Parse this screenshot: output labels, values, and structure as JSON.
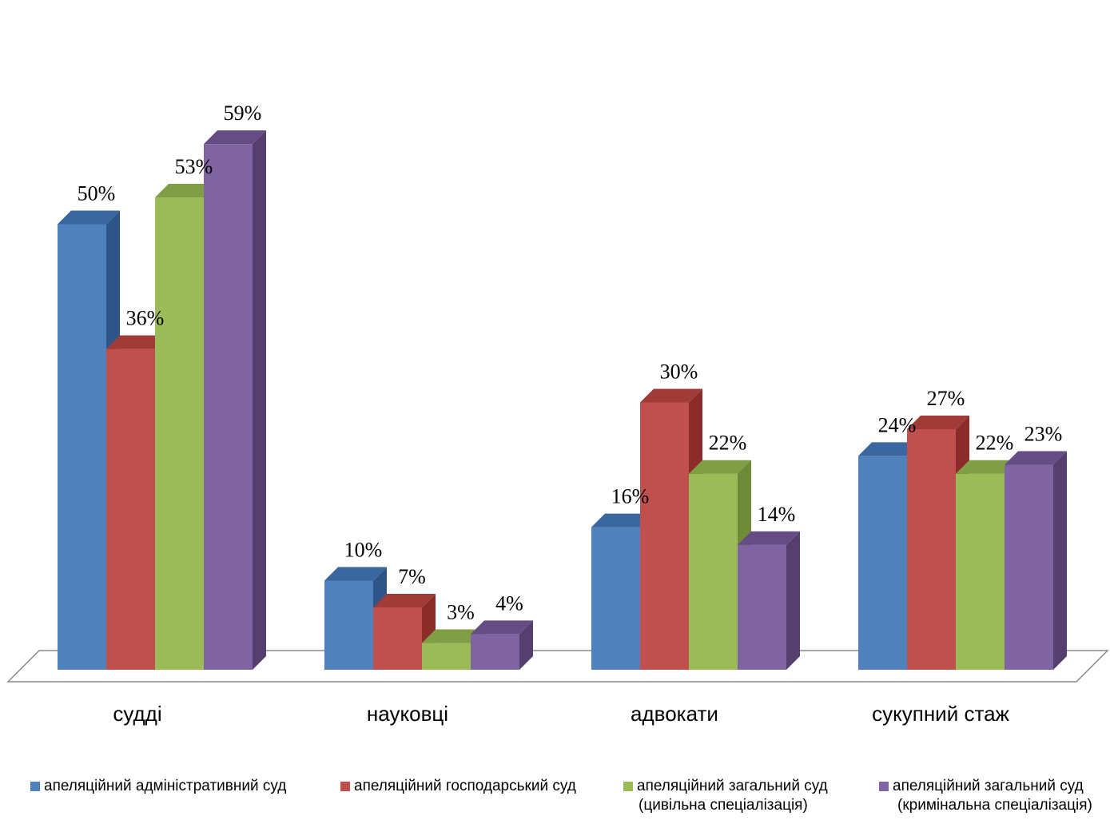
{
  "chart_data": {
    "type": "bar",
    "categories": [
      "судді",
      "науковці",
      "адвокати",
      "сукупний стаж"
    ],
    "series": [
      {
        "name": "апеляційний  адміністративний суд",
        "values": [
          50,
          10,
          16,
          24
        ],
        "labels": [
          "50%",
          "10%",
          "16%",
          "24%"
        ],
        "color": "#4F81BD",
        "side_color": "#2E5585",
        "top_color": "#3A679F"
      },
      {
        "name": "апеляційний господарський суд",
        "values": [
          36,
          7,
          30,
          27
        ],
        "labels": [
          "36%",
          "7%",
          "30%",
          "27%"
        ],
        "color": "#C0504D",
        "side_color": "#8C2C2A",
        "top_color": "#A13B38"
      },
      {
        "name": "апеляційний загальний суд (цивільна спеціалізація)",
        "name_line1": "апеляційний загальний суд",
        "name_line2": "(цивільна спеціалізація)",
        "values": [
          53,
          3,
          22,
          22
        ],
        "labels": [
          "53%",
          "3%",
          "22%",
          "22%"
        ],
        "color": "#9BBB59",
        "side_color": "#6E8A38",
        "top_color": "#7F9E45"
      },
      {
        "name": "апеляційний загальний суд (кримінальна спеціалізація)",
        "name_line1": "апеляційний загальний суд",
        "name_line2": "(кримінальна спеціалізація)",
        "values": [
          59,
          4,
          14,
          23
        ],
        "labels": [
          "59%",
          "4%",
          "14%",
          "23%"
        ],
        "color": "#8064A2",
        "side_color": "#553F6F",
        "top_color": "#664C85"
      }
    ],
    "ylim": [
      0,
      60
    ],
    "grid": false,
    "legend_position": "bottom"
  }
}
